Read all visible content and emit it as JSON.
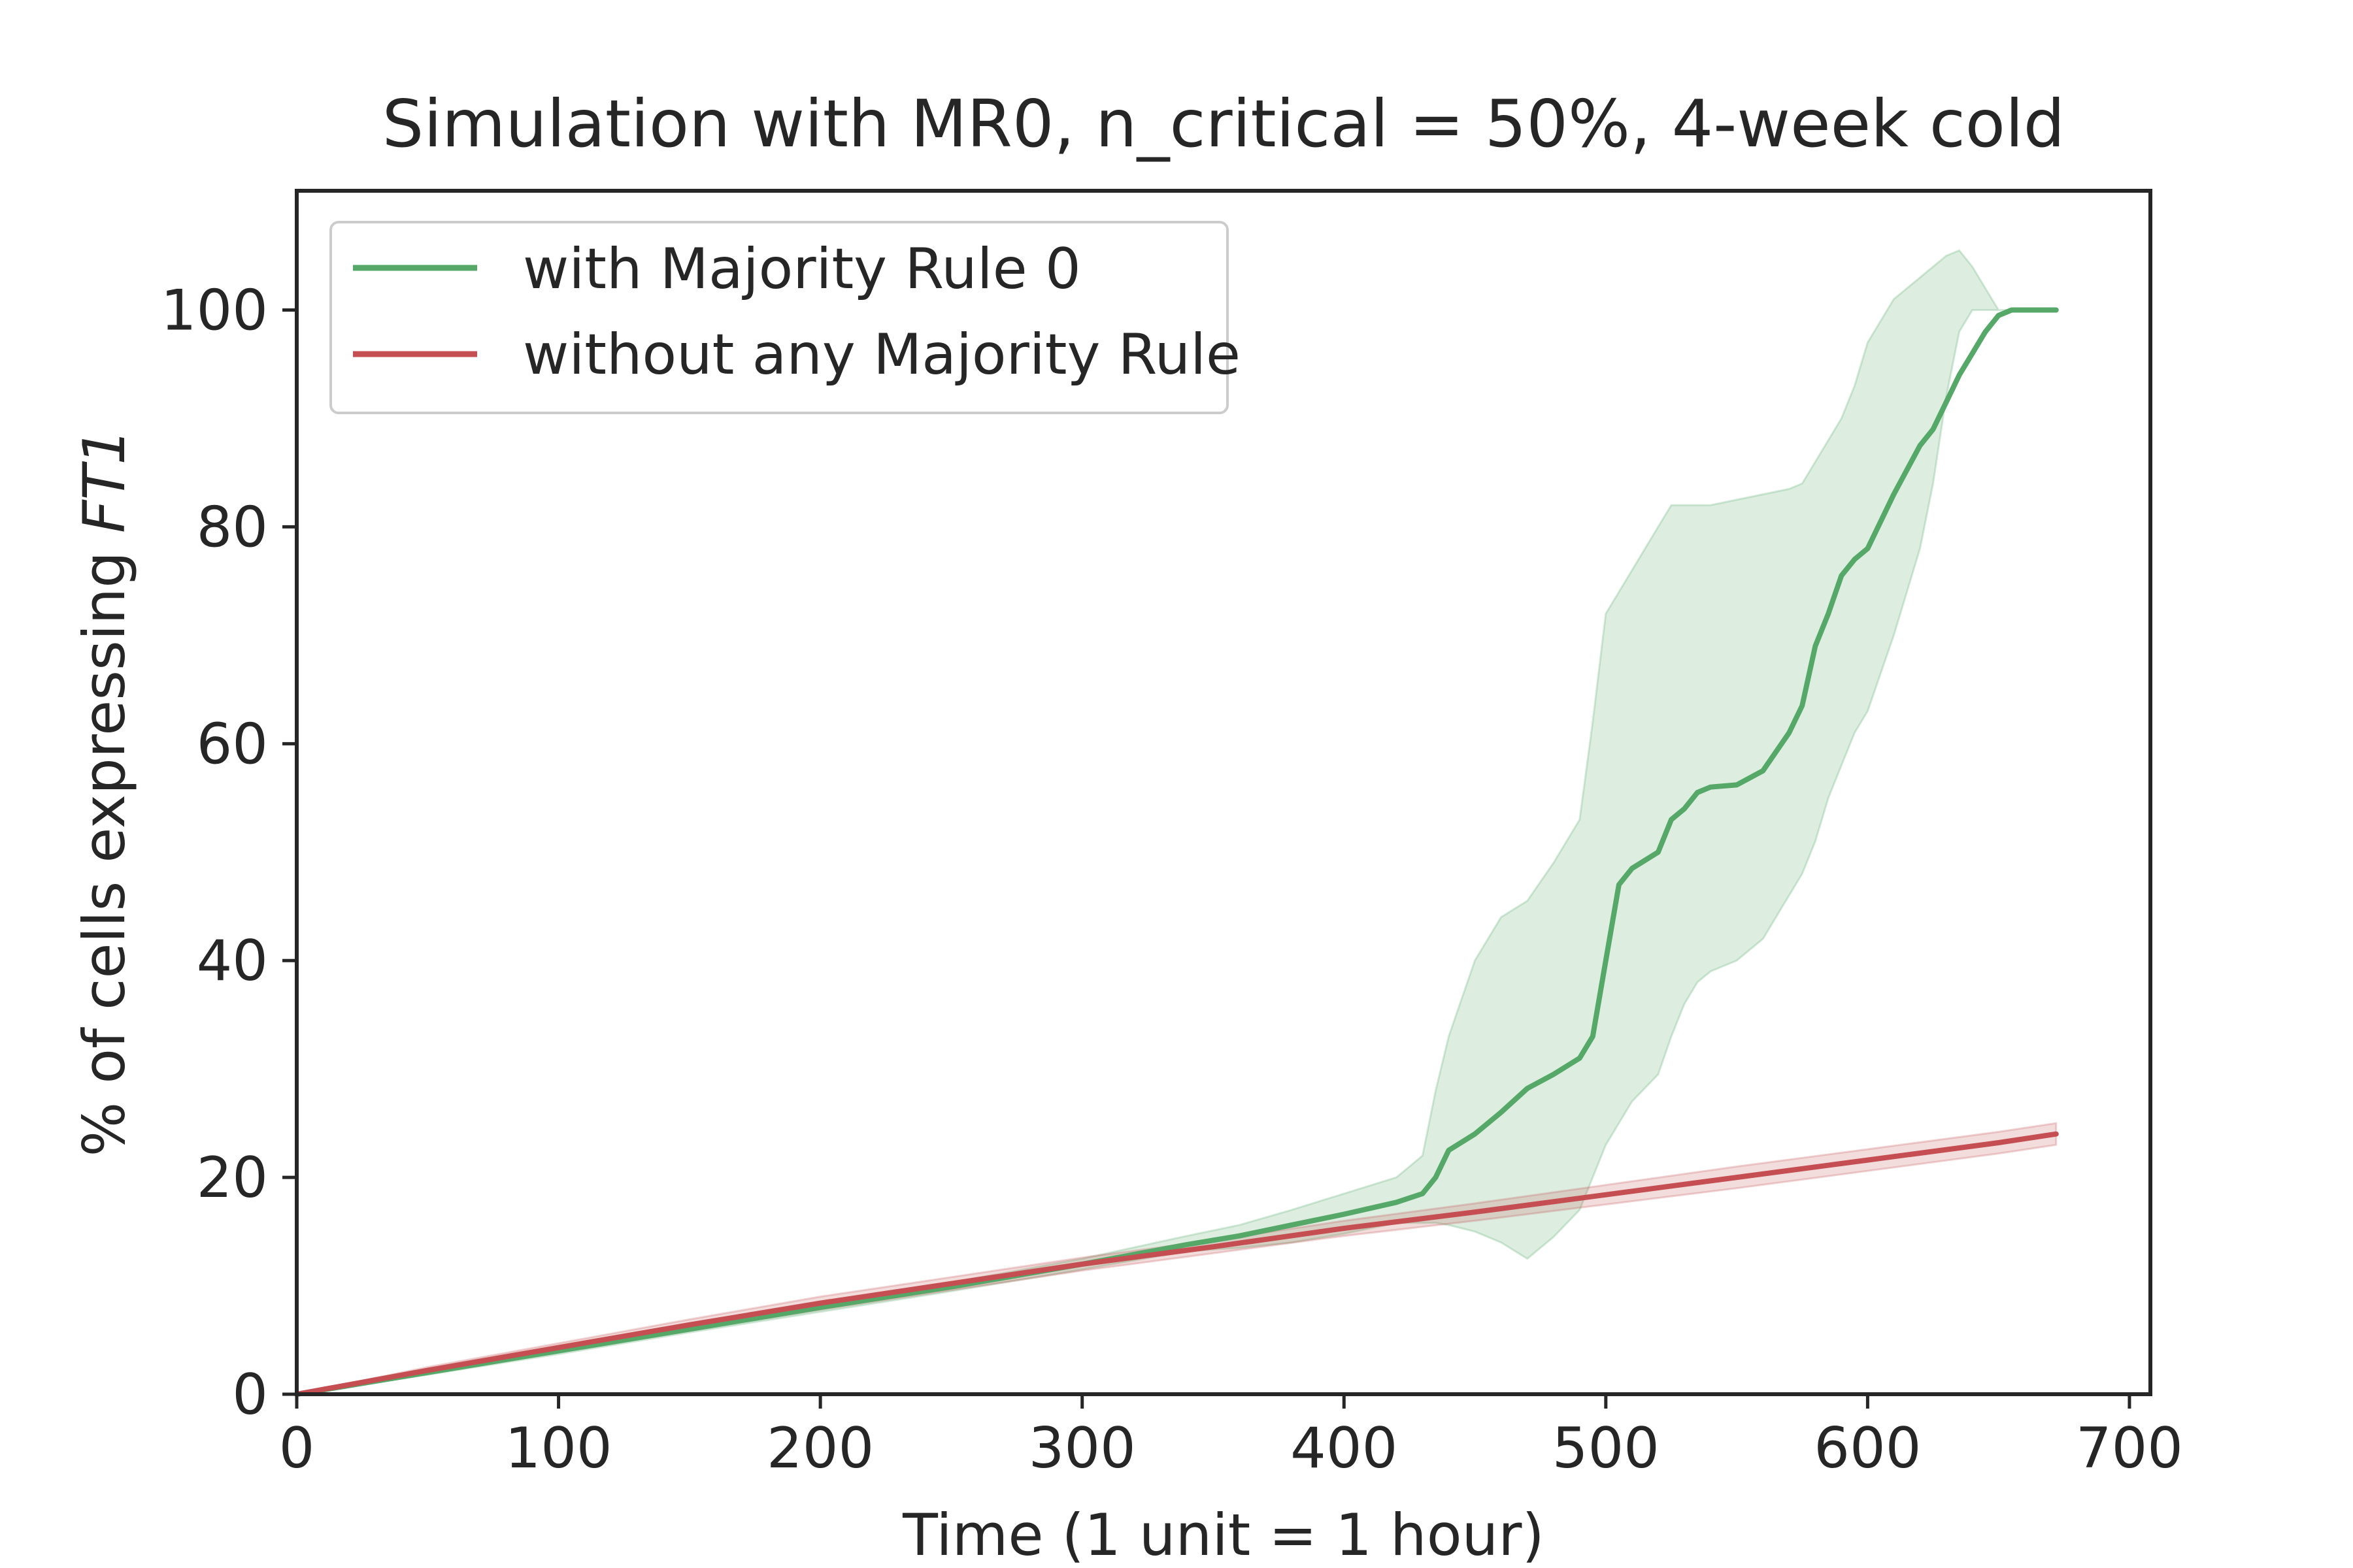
{
  "chart_data": {
    "type": "line",
    "title": "Simulation with MR0, n_critical = 50%, 4-week cold",
    "xlabel": "Time (1 unit = 1 hour)",
    "ylabel_prefix": "% of cells expressing ",
    "ylabel_italic": "FT1",
    "xlim": [
      0,
      708
    ],
    "ylim": [
      0,
      111
    ],
    "xticks": [
      0,
      100,
      200,
      300,
      400,
      500,
      600,
      700
    ],
    "yticks": [
      0,
      20,
      40,
      60,
      80,
      100
    ],
    "grid": false,
    "legend_position": "top-left",
    "series": [
      {
        "name": "with Majority Rule 0",
        "color": "#55a868",
        "band_color": "#55a868",
        "x": [
          0,
          50,
          100,
          150,
          200,
          250,
          300,
          340,
          360,
          380,
          400,
          420,
          430,
          435,
          440,
          450,
          460,
          470,
          480,
          490,
          495,
          500,
          505,
          510,
          520,
          525,
          530,
          535,
          540,
          550,
          560,
          570,
          575,
          580,
          585,
          590,
          595,
          600,
          610,
          620,
          625,
          630,
          635,
          640,
          645,
          650,
          655,
          660,
          672
        ],
        "values": [
          0,
          2,
          4,
          6,
          8,
          9.9,
          12,
          13.8,
          14.6,
          15.6,
          16.6,
          17.7,
          18.5,
          20,
          22.5,
          24,
          26,
          28.2,
          29.5,
          31,
          33,
          40,
          47,
          48.5,
          50,
          53,
          54,
          55.5,
          56,
          56.2,
          57.5,
          61,
          63.5,
          69,
          72,
          75.5,
          77,
          78,
          83,
          87.5,
          89,
          91.5,
          94,
          96,
          98,
          99.5,
          100,
          100,
          100
        ],
        "lower": [
          0,
          1.8,
          3.7,
          5.7,
          7.6,
          9.5,
          11.5,
          13.2,
          13.5,
          14.0,
          14.8,
          15.8,
          15.8,
          15.8,
          15.6,
          15.0,
          14.0,
          12.5,
          14.5,
          17,
          20,
          23,
          25,
          27,
          29.5,
          33,
          36,
          38,
          39,
          40,
          42,
          46,
          48,
          51,
          55,
          58,
          61,
          63,
          70,
          78,
          84,
          92,
          98,
          100,
          100,
          100,
          100,
          100,
          100
        ],
        "upper": [
          0,
          2.3,
          4.3,
          6.3,
          8.3,
          10.3,
          12.5,
          14.6,
          15.6,
          17.0,
          18.5,
          20,
          22,
          28,
          33,
          40,
          44,
          45.5,
          49,
          53,
          62,
          72,
          74,
          76,
          80,
          82,
          82,
          82,
          82,
          82.5,
          83,
          83.5,
          84,
          86,
          88,
          90,
          93,
          97,
          101,
          103,
          104,
          105,
          105.5,
          104,
          102,
          100,
          100,
          100,
          100
        ]
      },
      {
        "name": "without any Majority Rule",
        "color": "#c44e52",
        "band_color": "#c44e52",
        "x": [
          0,
          50,
          100,
          150,
          200,
          250,
          300,
          350,
          400,
          450,
          500,
          550,
          600,
          650,
          672
        ],
        "values": [
          0,
          2.2,
          4.3,
          6.4,
          8.4,
          10.2,
          12.0,
          13.6,
          15.3,
          16.8,
          18.4,
          20.0,
          21.6,
          23.2,
          24.0
        ],
        "lower": [
          0,
          1.9,
          3.9,
          5.9,
          7.8,
          9.6,
          11.4,
          13.0,
          14.6,
          16.0,
          17.5,
          19.0,
          20.6,
          22.2,
          23.0
        ],
        "upper": [
          0,
          2.5,
          4.7,
          6.9,
          9.0,
          10.8,
          12.6,
          14.2,
          16.0,
          17.6,
          19.3,
          21.0,
          22.6,
          24.2,
          25.0
        ]
      }
    ]
  }
}
